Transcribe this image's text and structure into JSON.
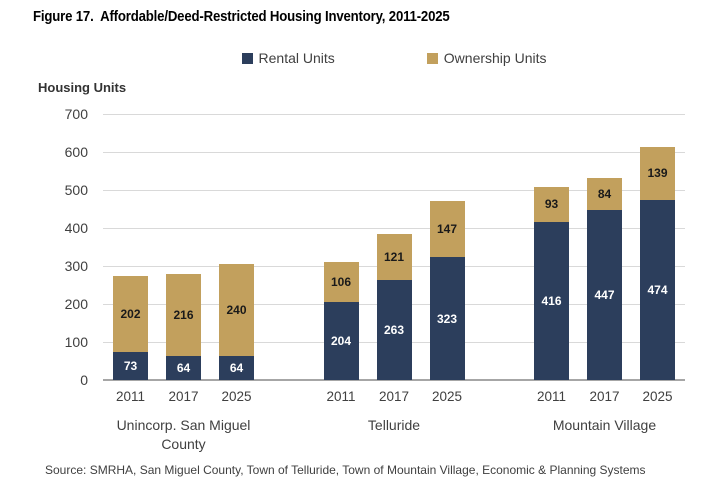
{
  "source": "Source: SMRHA, San Miguel County, Town of Telluride, Town of Mountain Village, Economic & Planning Systems",
  "colors": {
    "rental": "#2C3E5C",
    "ownership": "#C2A05D",
    "gridline": "#D9D9D9",
    "axis_line": "#A6A6A6",
    "text": "#404040"
  },
  "chart_data": {
    "type": "bar",
    "stacked": true,
    "title": "Figure 17.  Affordable/Deed-Restricted Housing Inventory, 2011-2025",
    "ylabel": "Housing Units",
    "xlabel": "",
    "ylim": [
      0,
      700
    ],
    "ytick_step": 100,
    "grid": true,
    "legend_position": "top-center",
    "group_labels": [
      "Unincorp. San Miguel County",
      "Telluride",
      "Mountain Village"
    ],
    "bars_per_group": 3,
    "categories": [
      "2011",
      "2017",
      "2025",
      "2011",
      "2017",
      "2025",
      "2011",
      "2017",
      "2025"
    ],
    "series": [
      {
        "name": "Rental Units",
        "color": "#2C3E5C",
        "label_color": "#FFFFFF",
        "values": [
          73,
          64,
          64,
          204,
          263,
          323,
          416,
          447,
          474
        ]
      },
      {
        "name": "Ownership Units",
        "color": "#C2A05D",
        "label_color": "#1A1A1A",
        "values": [
          202,
          216,
          240,
          106,
          121,
          147,
          93,
          84,
          139
        ]
      }
    ]
  }
}
